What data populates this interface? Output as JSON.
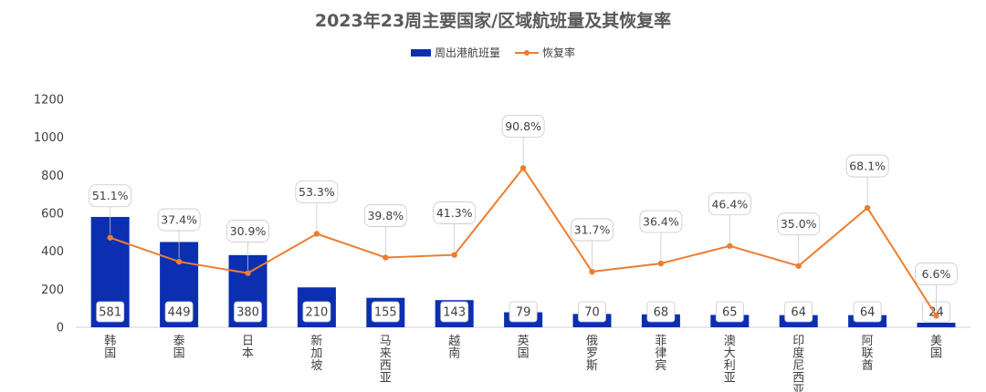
{
  "chart_data": {
    "type": "bar",
    "title": "2023年23周主要国家/区域航班量及其恢复率",
    "categories": [
      "韩国",
      "泰国",
      "日本",
      "新加坡",
      "马来西亚",
      "越南",
      "英国",
      "俄罗斯",
      "菲律宾",
      "澳大利亚",
      "印度尼西亚",
      "阿联酋",
      "美国"
    ],
    "series": [
      {
        "name": "周出港航班量",
        "type": "bar",
        "values": [
          581,
          449,
          380,
          210,
          155,
          143,
          79,
          70,
          68,
          65,
          64,
          64,
          24
        ],
        "color": "#0b2fb0"
      },
      {
        "name": "恢复率",
        "type": "line",
        "values": [
          51.1,
          37.4,
          30.9,
          53.3,
          39.8,
          41.3,
          90.8,
          31.7,
          36.4,
          46.4,
          35.0,
          68.1,
          6.6
        ],
        "labels": [
          "51.1%",
          "37.4%",
          "30.9%",
          "53.3%",
          "39.8%",
          "41.3%",
          "90.8%",
          "31.7%",
          "36.4%",
          "46.4%",
          "35.0%",
          "68.1%",
          "6.6%"
        ],
        "color": "#ed7d31"
      }
    ],
    "y_ticks": [
      "0",
      "200",
      "400",
      "600",
      "800",
      "1000",
      "1200"
    ],
    "ylim": [
      0,
      1200
    ],
    "y2lim": [
      0,
      130
    ],
    "legend_position": "top-center",
    "grid": false
  }
}
